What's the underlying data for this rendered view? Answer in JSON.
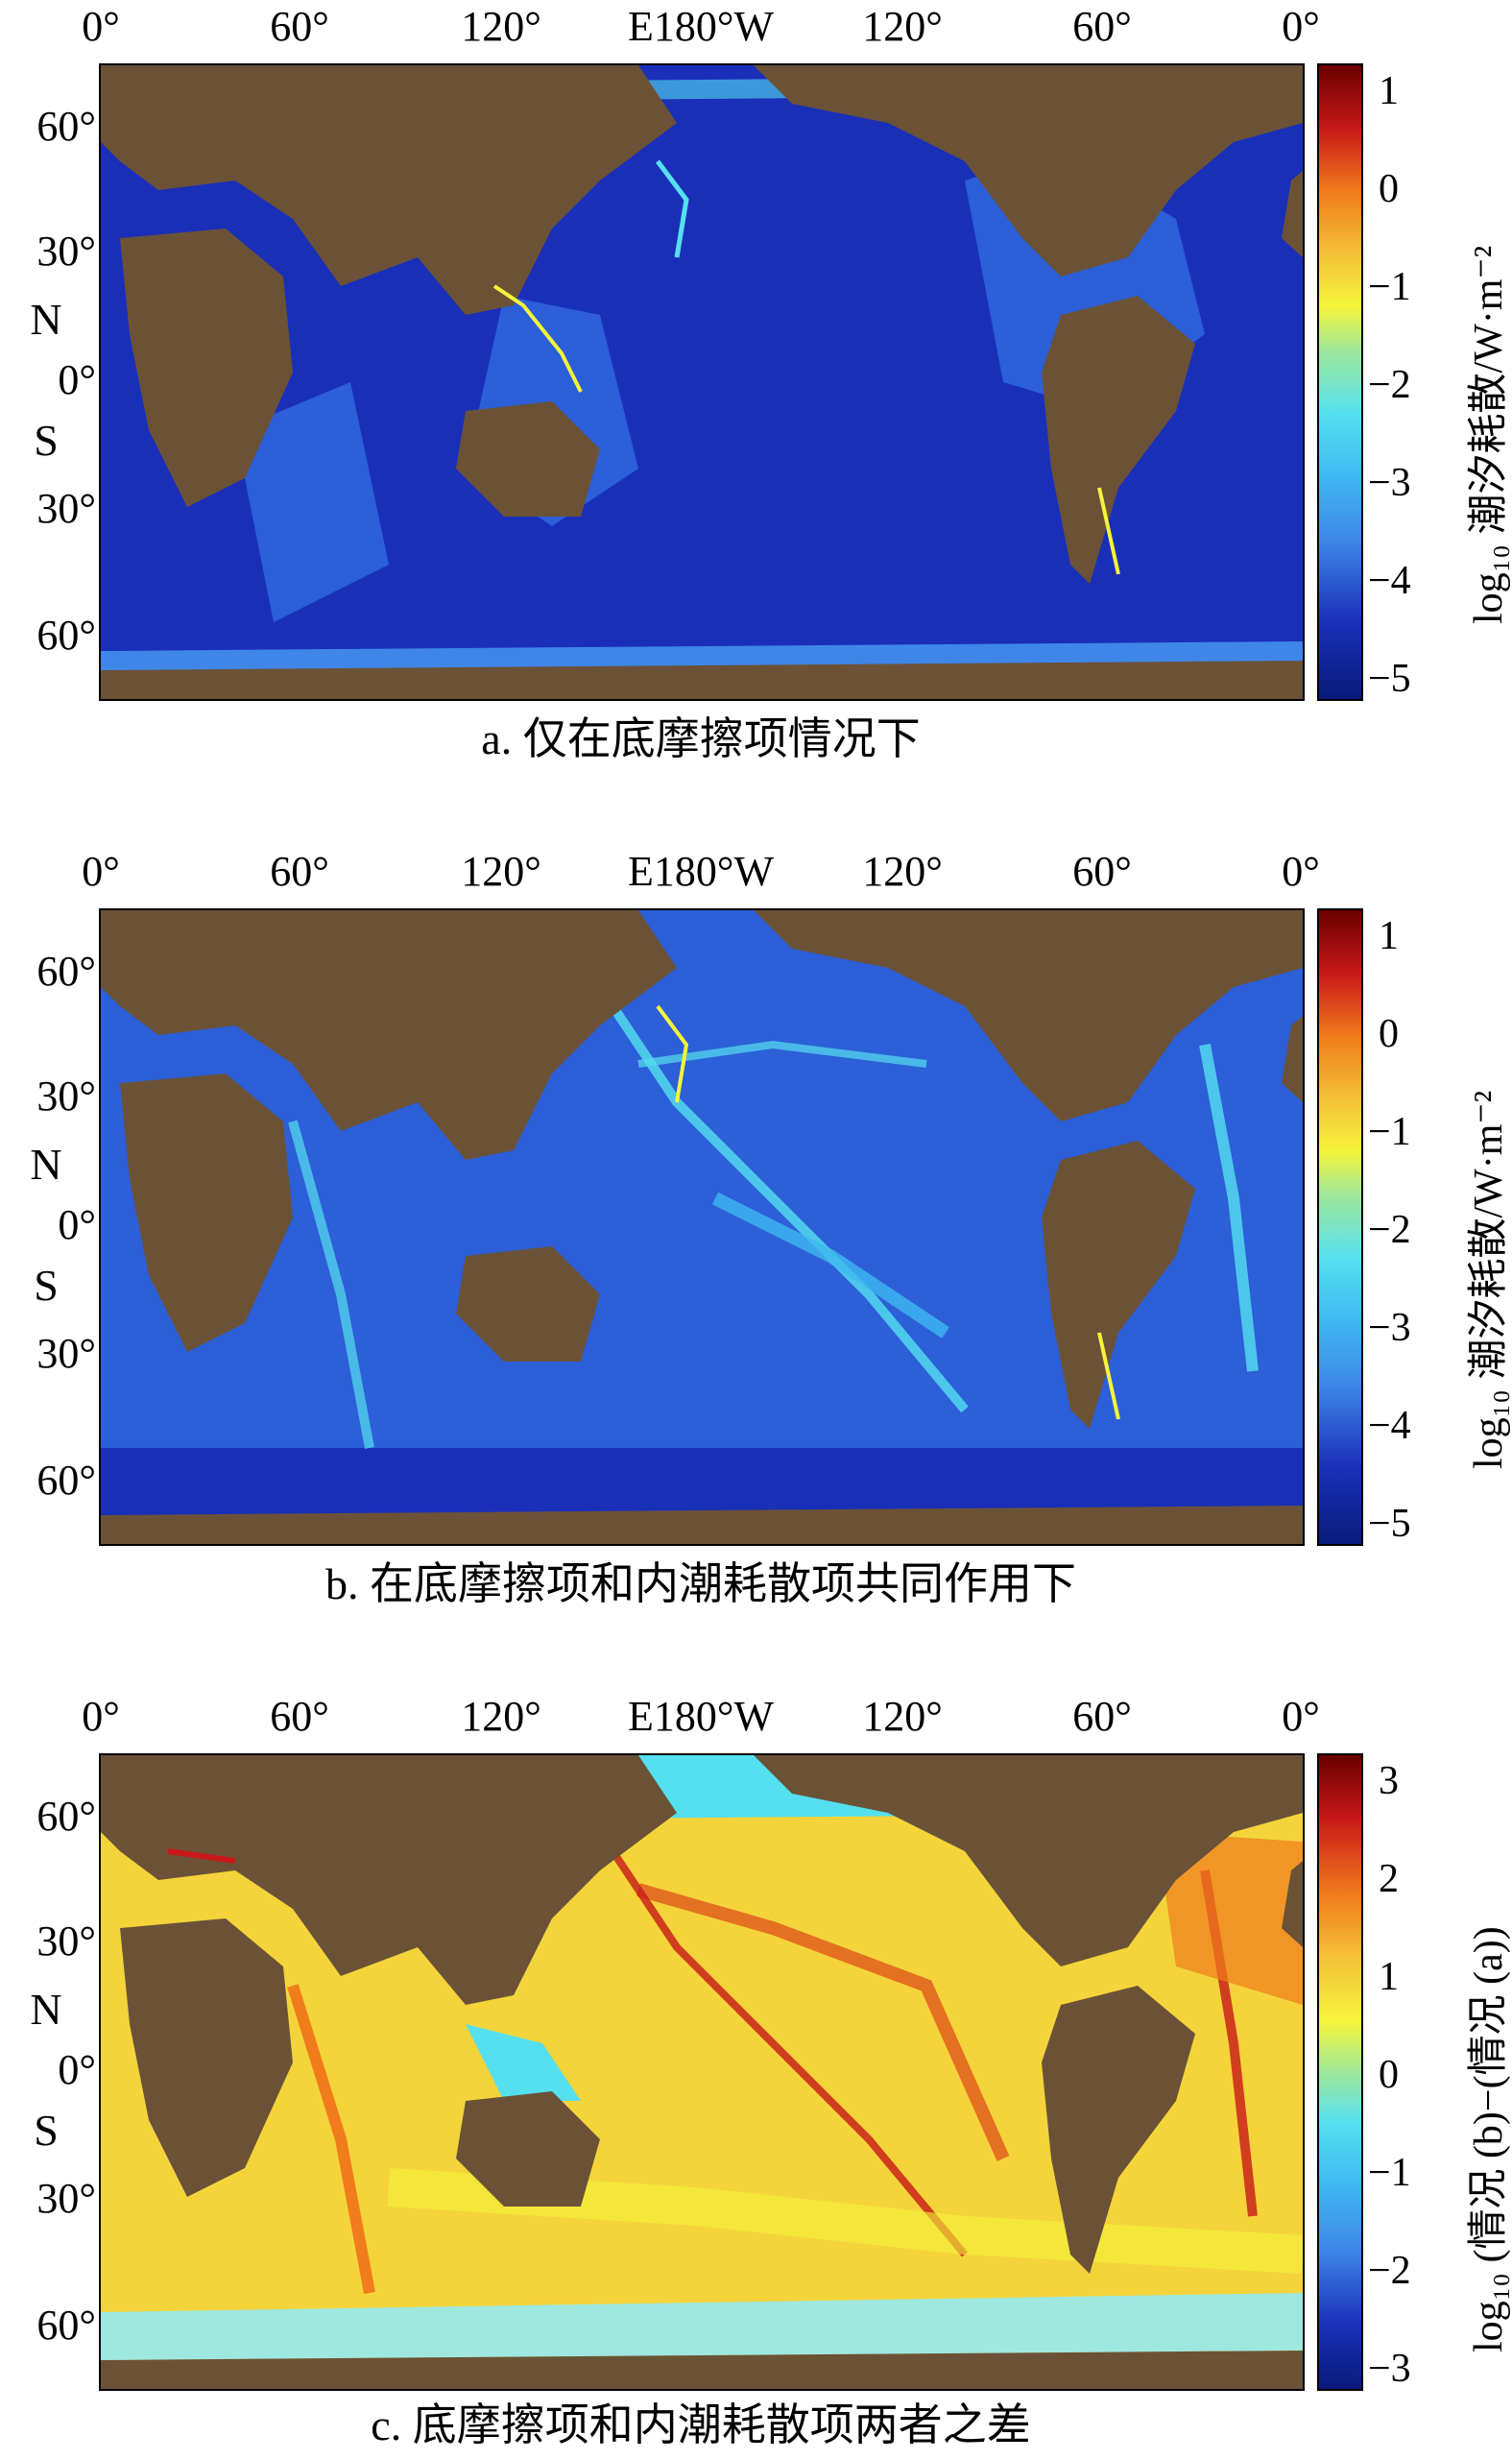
{
  "axes": {
    "lon_labels": [
      "0°",
      "60°",
      "120°",
      "E180°W",
      "120°",
      "60°",
      "0°"
    ],
    "lat_labels": [
      "60°",
      "30°",
      "0°",
      "30°",
      "60°"
    ],
    "north": "N",
    "south": "S"
  },
  "panels": [
    {
      "caption": "a. 仅在底摩擦项情况下",
      "colorbar_ticks": [
        "1",
        "0",
        "−1",
        "−2",
        "−3",
        "−4",
        "−5"
      ],
      "colorbar_title": "log₁₀ 潮汐耗散/W·m⁻²"
    },
    {
      "caption": "b. 在底摩擦项和内潮耗散项共同作用下",
      "colorbar_ticks": [
        "1",
        "0",
        "−1",
        "−2",
        "−3",
        "−4",
        "−5"
      ],
      "colorbar_title": "log₁₀ 潮汐耗散/W·m⁻²"
    },
    {
      "caption": "c. 底摩擦项和内潮耗散项两者之差",
      "colorbar_ticks": [
        "3",
        "2",
        "1",
        "0",
        "−1",
        "−2",
        "−3"
      ],
      "colorbar_title": "log₁₀ (情况 (b)−(情况 (a))"
    }
  ],
  "colors": {
    "land": "#6b5237",
    "ocean_deep": "#1a2fb8",
    "ocean_mid": "#3f86e8",
    "ocean_bright": "#55e0f0",
    "yellow": "#f4f43a",
    "orange": "#f07c1c",
    "red": "#c81818"
  }
}
